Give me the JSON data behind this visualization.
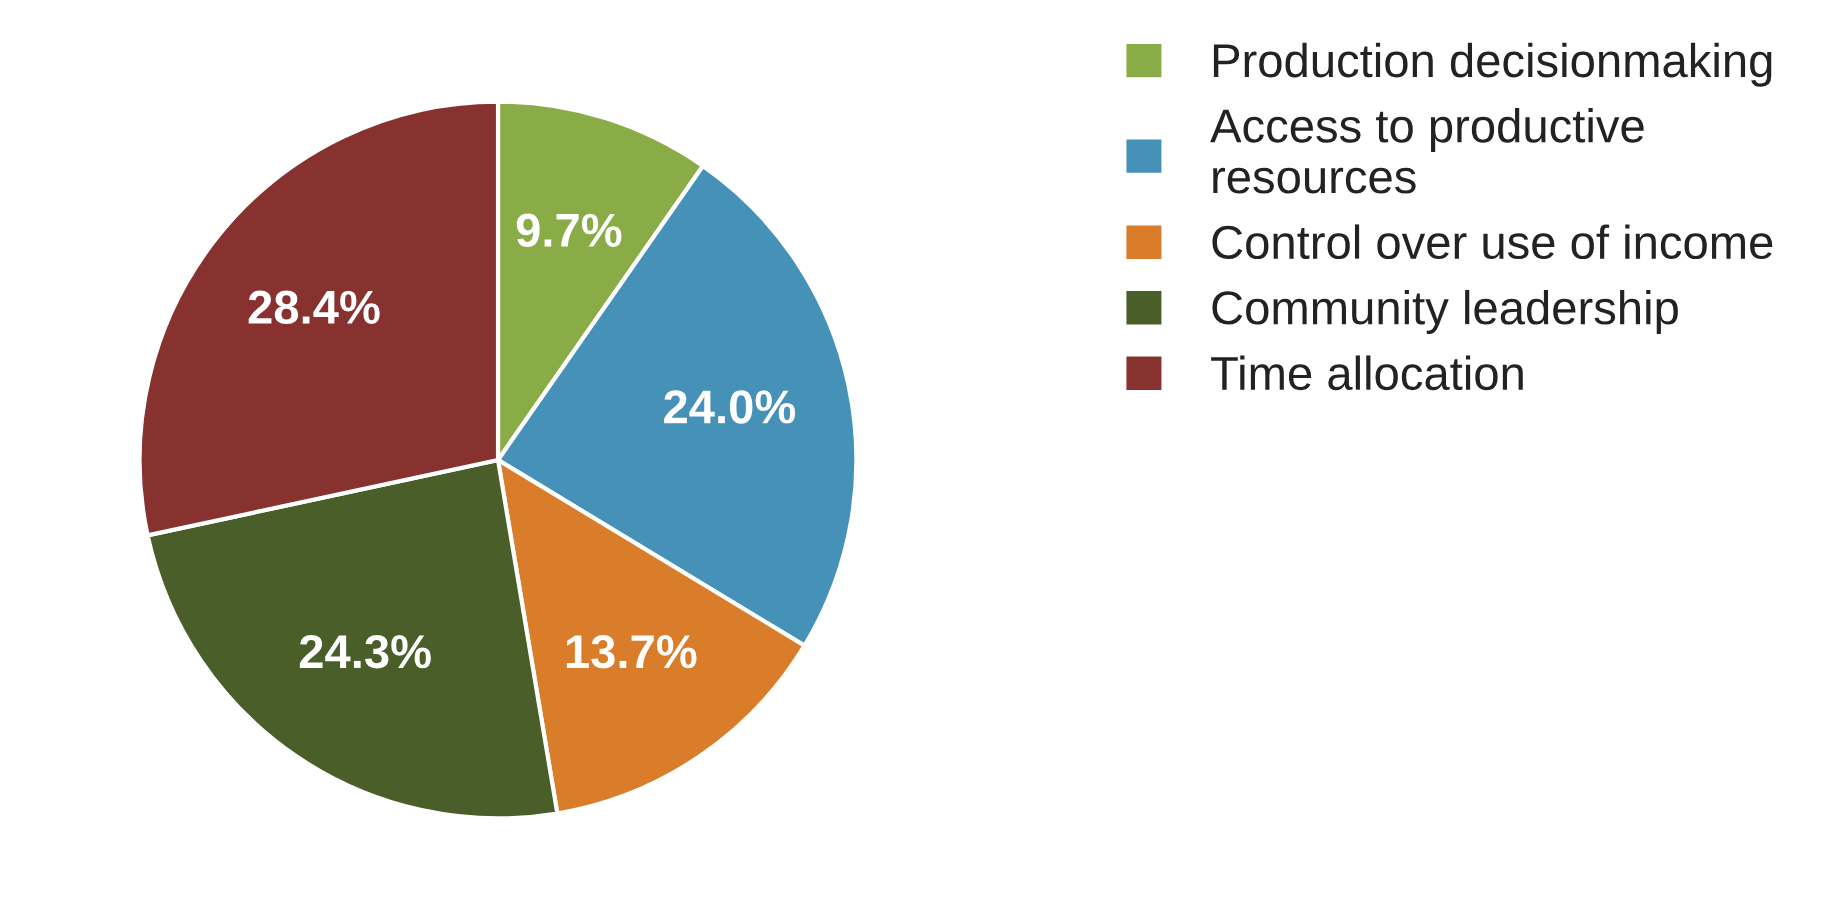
{
  "chart_data": {
    "type": "pie",
    "categories": [
      "Production decisionmaking",
      "Access to productive\nresources",
      "Control over use of income",
      "Community leadership",
      "Time allocation"
    ],
    "values": [
      9.7,
      24.0,
      13.7,
      24.3,
      28.4
    ],
    "value_labels": [
      "9.7%",
      "24.0%",
      "13.7%",
      "24.3%",
      "28.4%"
    ],
    "colors": [
      "#8aac46",
      "#4591b8",
      "#d97d2a",
      "#4a5e2a",
      "#883230"
    ],
    "legend": "top right"
  }
}
